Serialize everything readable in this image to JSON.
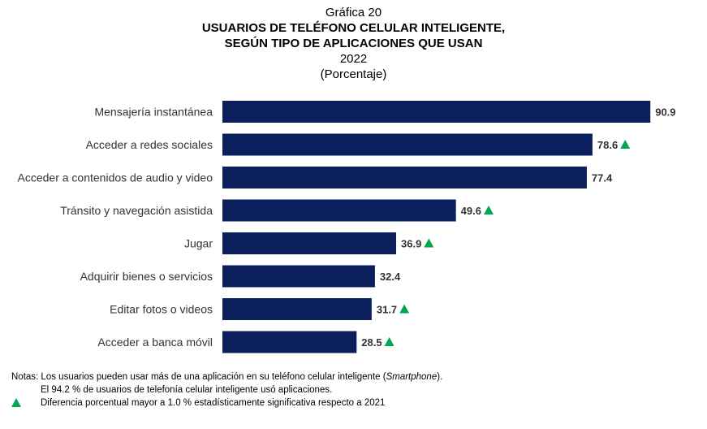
{
  "header": {
    "label": "Gráfica 20",
    "title_line1": "USUARIOS DE TELÉFONO CELULAR INTELIGENTE,",
    "title_line2": "SEGÚN TIPO DE APLICACIONES QUE USAN",
    "year": "2022",
    "unit": "(Porcentaje)"
  },
  "chart_data": {
    "type": "bar",
    "orientation": "horizontal",
    "categories": [
      "Mensajería instantánea",
      "Acceder a redes sociales",
      "Acceder a contenidos de audio y video",
      "Tránsito y navegación asistida",
      "Jugar",
      "Adquirir bienes o servicios",
      "Editar fotos o videos",
      "Acceder a banca móvil"
    ],
    "values": [
      90.9,
      78.6,
      77.4,
      49.6,
      36.9,
      32.4,
      31.7,
      28.5
    ],
    "value_labels": [
      "90.9",
      "78.6",
      "77.4",
      "49.6",
      "36.9",
      "32.4",
      "31.7",
      "28.5"
    ],
    "significant": [
      false,
      true,
      false,
      true,
      true,
      false,
      true,
      true
    ],
    "xlim": [
      0,
      100
    ],
    "grid": false,
    "bar_color": "#0a1f5c",
    "marker_color": "#00a651"
  },
  "notes": {
    "line1_prefix": "Notas: Los usuarios pueden usar más de una aplicación en su teléfono celular inteligente (",
    "line1_em": "Smartphone",
    "line1_suffix": ").",
    "line2": "El 94.2 % de usuarios de telefonía celular inteligente usó aplicaciones.",
    "line3": "Diferencia porcentual mayor a 1.0 % estadísticamente significativa respecto a 2021"
  }
}
